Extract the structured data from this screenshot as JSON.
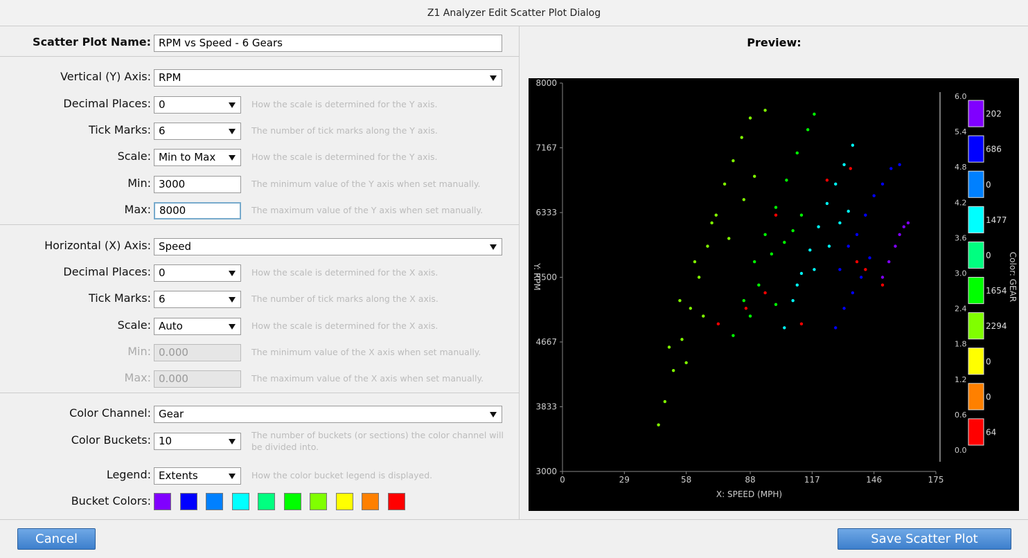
{
  "window_title": "Z1 Analyzer Edit Scatter Plot Dialog",
  "form": {
    "sections": [
      {
        "rows": [
          {
            "label": "Scatter Plot Name:",
            "value": "RPM vs Speed - 6 Gears",
            "control": "input",
            "bold": true
          }
        ]
      },
      {
        "rows": [
          {
            "label": "Vertical (Y) Axis:",
            "value": "RPM",
            "control": "select"
          },
          {
            "label": "Decimal Places:",
            "value": "0",
            "control": "select",
            "help": "How the scale is determined for the Y axis."
          },
          {
            "label": "Tick Marks:",
            "value": "6",
            "control": "select",
            "help": "The number of tick marks along the Y axis."
          },
          {
            "label": "Scale:",
            "value": "Min to Max",
            "control": "select",
            "help": "How the scale is determined for the Y axis."
          },
          {
            "label": "Min:",
            "value": "3000",
            "control": "input",
            "help": "The minimum value of the Y axis when set manually."
          },
          {
            "label": "Max:",
            "value": "8000",
            "control": "input",
            "focused": true,
            "help": "The maximum value of the Y axis when set manually."
          }
        ]
      },
      {
        "rows": [
          {
            "label": "Horizontal (X) Axis:",
            "value": "Speed",
            "control": "select"
          },
          {
            "label": "Decimal Places:",
            "value": "0",
            "control": "select",
            "help": "How the scale is determined for the X axis."
          },
          {
            "label": "Tick Marks:",
            "value": "6",
            "control": "select",
            "help": "The number of tick marks along the X axis."
          },
          {
            "label": "Scale:",
            "value": "Auto",
            "control": "select",
            "help": "How the scale is determined for the X axis."
          },
          {
            "label": "Min:",
            "value": "0.000",
            "control": "input",
            "disabled": true,
            "help": "The minimum value of the X axis when set manually."
          },
          {
            "label": "Max:",
            "value": "0.000",
            "control": "input",
            "disabled": true,
            "help": "The maximum value of the X axis when set manually."
          }
        ]
      },
      {
        "rows": [
          {
            "label": "Color Channel:",
            "value": "Gear",
            "control": "select"
          },
          {
            "label": "Color Buckets:",
            "value": "10",
            "control": "select",
            "help": "The number of buckets (or sections) the color channel will be divided into."
          },
          {
            "label": "Legend:",
            "value": "Extents",
            "control": "select",
            "help": "How the color bucket legend is displayed."
          },
          {
            "label": "Bucket Colors:",
            "colors": [
              "#8000ff",
              "#0000ff",
              "#0080ff",
              "#00ffff",
              "#00ff80",
              "#00ff00",
              "#80ff00",
              "#ffff00",
              "#ff8000",
              "#ff0000"
            ]
          }
        ]
      }
    ]
  },
  "preview_label": "Preview:",
  "chart_data": {
    "type": "scatter",
    "xlabel": "X: SPEED (MPH)",
    "ylabel": "Y: RPM",
    "color_label": "Color: GEAR",
    "xlim": [
      0,
      175
    ],
    "ylim": [
      3000,
      8000
    ],
    "xticks": [
      0,
      29,
      58,
      88,
      117,
      146,
      175
    ],
    "yticks": [
      3000,
      3833,
      4667,
      5500,
      6333,
      7167,
      8000
    ],
    "series": [
      {
        "color": "#80ff00",
        "x": [
          45,
          48,
          52,
          56,
          60,
          64,
          68,
          72,
          76,
          80,
          84,
          88,
          95,
          50,
          55,
          62,
          70,
          78,
          85,
          90,
          58,
          66
        ],
        "y": [
          3600,
          3900,
          4300,
          4700,
          5100,
          5500,
          5900,
          6300,
          6700,
          7000,
          7300,
          7550,
          7650,
          4600,
          5200,
          5700,
          6200,
          6000,
          6500,
          6800,
          4400,
          5000
        ]
      },
      {
        "color": "#00ff00",
        "x": [
          80,
          85,
          90,
          95,
          100,
          105,
          110,
          115,
          118,
          92,
          98,
          104,
          108,
          112,
          100,
          88
        ],
        "y": [
          4750,
          5200,
          5700,
          6050,
          6400,
          6750,
          7100,
          7400,
          7600,
          5400,
          5800,
          5950,
          6100,
          6300,
          5150,
          5000
        ]
      },
      {
        "color": "#00ffff",
        "x": [
          104,
          108,
          112,
          116,
          120,
          124,
          128,
          132,
          136,
          118,
          125,
          130,
          134,
          110
        ],
        "y": [
          4850,
          5200,
          5550,
          5850,
          6150,
          6450,
          6700,
          6950,
          7200,
          5600,
          5900,
          6200,
          6350,
          5400
        ]
      },
      {
        "color": "#0000ff",
        "x": [
          130,
          134,
          138,
          142,
          146,
          150,
          154,
          158,
          132,
          136,
          140,
          144,
          128
        ],
        "y": [
          5600,
          5900,
          6050,
          6300,
          6550,
          6700,
          6900,
          6950,
          5100,
          5300,
          5500,
          5750,
          4850
        ]
      },
      {
        "color": "#8000ff",
        "x": [
          150,
          153,
          156,
          158,
          160,
          162
        ],
        "y": [
          5500,
          5700,
          5900,
          6050,
          6150,
          6200
        ]
      },
      {
        "color": "#ff0000",
        "x": [
          73,
          86,
          95,
          100,
          112,
          124,
          135,
          138,
          142,
          150
        ],
        "y": [
          4900,
          5100,
          5300,
          6300,
          4900,
          6750,
          6900,
          5700,
          5600,
          5400
        ]
      }
    ],
    "legend_ticks": [
      {
        "value": 6,
        "label": "6.0"
      },
      {
        "value": 5.4,
        "label": "5.4"
      },
      {
        "value": 4.8,
        "label": "4.8"
      },
      {
        "value": 4.2,
        "label": "4.2"
      },
      {
        "value": 3.6,
        "label": "3.6"
      },
      {
        "value": 3,
        "label": "3.0"
      },
      {
        "value": 2.4,
        "label": "2.4"
      },
      {
        "value": 1.8,
        "label": "1.8"
      },
      {
        "value": 1.2,
        "label": "1.2"
      },
      {
        "value": 0.6,
        "label": "0.6"
      },
      {
        "value": 0,
        "label": "0.0"
      }
    ],
    "legend_lim": [
      0,
      6
    ],
    "buckets": [
      {
        "color": "#8000ff",
        "count": 202
      },
      {
        "color": "#0000ff",
        "count": 686
      },
      {
        "color": "#0080ff",
        "count": 0
      },
      {
        "color": "#00ffff",
        "count": 1477
      },
      {
        "color": "#00ff80",
        "count": 0
      },
      {
        "color": "#00ff00",
        "count": 1654
      },
      {
        "color": "#80ff00",
        "count": 2294
      },
      {
        "color": "#ffff00",
        "count": 0
      },
      {
        "color": "#ff8000",
        "count": 0
      },
      {
        "color": "#ff0000",
        "count": 64
      }
    ]
  },
  "buttons": {
    "cancel": "Cancel",
    "save": "Save Scatter Plot"
  }
}
